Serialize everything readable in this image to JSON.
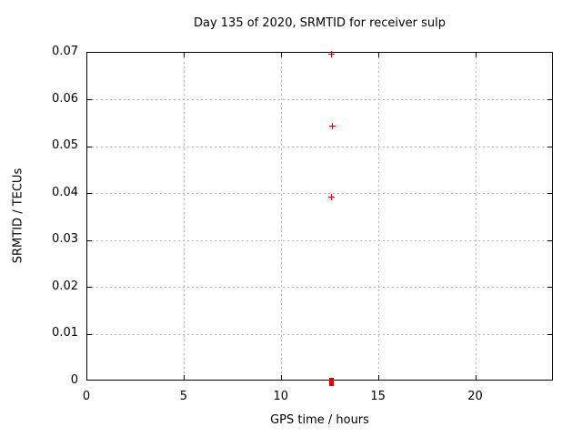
{
  "chart_data": {
    "type": "scatter",
    "title": "Day 135 of 2020, SRMTID for receiver sulp",
    "xlabel": "GPS time / hours",
    "ylabel": "SRMTID / TECUs",
    "xlim": [
      0,
      24
    ],
    "ylim": [
      0,
      0.07
    ],
    "grid": true,
    "legend_position": "none",
    "x_ticks": [
      {
        "v": 0,
        "label": "0"
      },
      {
        "v": 5,
        "label": "5"
      },
      {
        "v": 10,
        "label": "10"
      },
      {
        "v": 15,
        "label": "15"
      },
      {
        "v": 20,
        "label": "20"
      }
    ],
    "y_ticks": [
      {
        "v": 0,
        "label": "0"
      },
      {
        "v": 0.01,
        "label": "0.01"
      },
      {
        "v": 0.02,
        "label": "0.02"
      },
      {
        "v": 0.03,
        "label": "0.03"
      },
      {
        "v": 0.04,
        "label": "0.04"
      },
      {
        "v": 0.05,
        "label": "0.05"
      },
      {
        "v": 0.06,
        "label": "0.06"
      },
      {
        "v": 0.07,
        "label": "0.07"
      }
    ],
    "series": [
      {
        "name": "SRMTID",
        "marker": "plus",
        "color": "#dd0000",
        "points": [
          {
            "x": 12.58,
            "y": 0.0697
          },
          {
            "x": 12.6,
            "y": 0.0544
          },
          {
            "x": 12.55,
            "y": 0.0392
          }
        ]
      }
    ],
    "zero_cluster": {
      "x": 12.54,
      "y": 0,
      "color": "#dd0000",
      "note": "dense cluster of overlapping points at y=0"
    }
  },
  "colors": {
    "grid": "#b3b3b3",
    "axis": "#000000",
    "marker": "#dd0000",
    "background": "#ffffff"
  }
}
